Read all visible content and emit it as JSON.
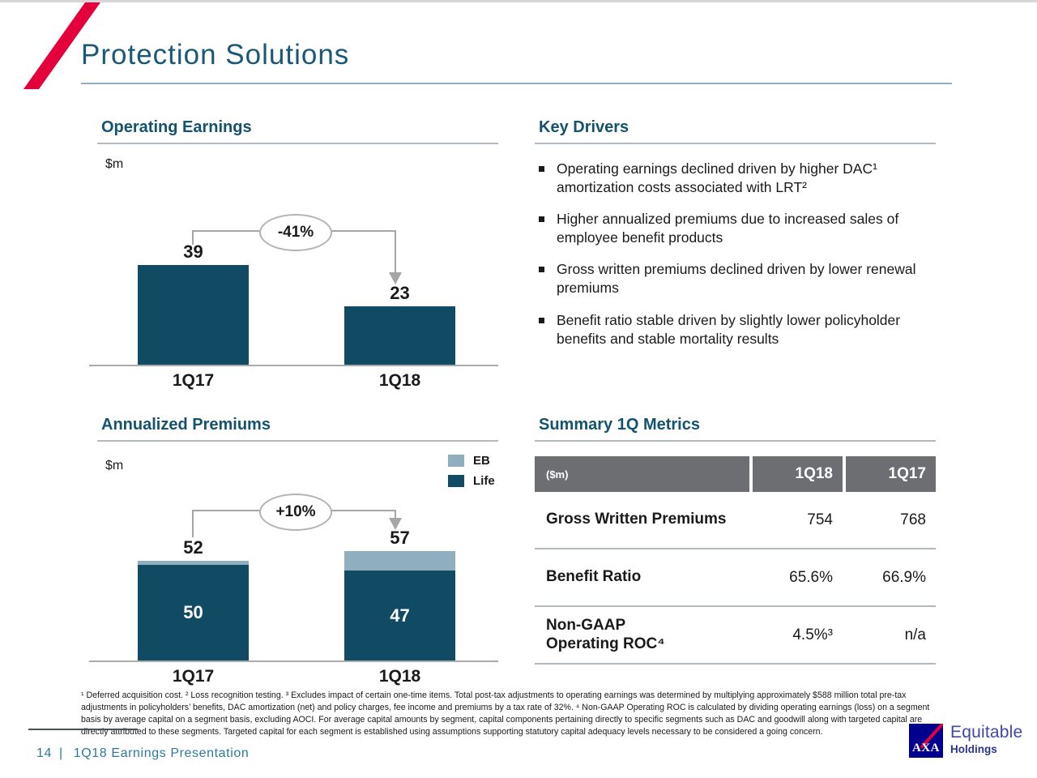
{
  "title": "Protection Solutions",
  "sections": {
    "operating_earnings": {
      "heading": "Operating Earnings",
      "unit_label": "$m"
    },
    "key_drivers": {
      "heading": "Key Drivers",
      "bullets": [
        "Operating earnings declined driven by higher DAC¹ amortization costs associated with LRT²",
        "Higher annualized premiums due to increased sales of employee benefit products",
        "Gross written premiums declined driven by lower renewal premiums",
        "Benefit ratio stable driven by slightly lower policyholder benefits and stable mortality results"
      ]
    },
    "annualized_premiums": {
      "heading": "Annualized Premiums",
      "unit_label": "$m"
    },
    "summary_metrics": {
      "heading": "Summary 1Q Metrics"
    }
  },
  "chart_data": [
    {
      "type": "bar",
      "title": "Operating Earnings",
      "unit": "$m",
      "categories": [
        "1Q17",
        "1Q18"
      ],
      "values": [
        39,
        23
      ],
      "change_label": "-41%",
      "bar_color": "#114A63",
      "ylim": [
        0,
        45
      ],
      "grid": false,
      "data_labels": true
    },
    {
      "type": "bar",
      "stacked": true,
      "title": "Annualized Premiums",
      "unit": "$m",
      "categories": [
        "1Q17",
        "1Q18"
      ],
      "series": [
        {
          "name": "Life",
          "values": [
            50,
            47
          ],
          "color": "#114A63"
        },
        {
          "name": "EB",
          "values": [
            2,
            10
          ],
          "color": "#8FAFC0"
        }
      ],
      "totals": [
        52,
        57
      ],
      "change_label": "+10%",
      "legend_position": "top-right",
      "ylim": [
        0,
        65
      ],
      "grid": false,
      "data_labels": true
    },
    {
      "type": "table",
      "title": "Summary 1Q Metrics",
      "header": [
        "($m)",
        "1Q18",
        "1Q17"
      ],
      "rows": [
        [
          "Gross Written Premiums",
          "754",
          "768"
        ],
        [
          "Benefit Ratio",
          "65.6%",
          "66.9%"
        ],
        [
          "Non-GAAP\nOperating ROC⁴",
          "4.5%³",
          "n/a"
        ]
      ]
    }
  ],
  "footnotes": "¹ Deferred acquisition cost. ² Loss recognition testing. ³ Excludes impact of certain one-time items. Total post-tax adjustments to operating earnings was determined by multiplying approximately $588 million total pre-tax adjustments in policyholders’ benefits, DAC amortization (net) and policy charges, fee income and premiums by a tax rate of 32%. ⁴ Non-GAAP Operating ROC is calculated by dividing operating earnings (loss) on a segment basis by average capital on a segment basis, excluding AOCI.  For average capital amounts by segment, capital components pertaining directly to specific segments such as DAC and goodwill along with targeted capital are directly attributed to these segments. Targeted capital for each segment is established using assumptions supporting statutory capital adequacy levels necessary to be considered a going concern.",
  "footer": {
    "page_number": "14",
    "divider": "|",
    "label": "1Q18 Earnings Presentation"
  },
  "logo": {
    "mark_text": "AXA",
    "name_line1": "Equitable",
    "name_line2": "Holdings"
  },
  "colors": {
    "accent_red": "#E4003A",
    "heading_teal": "#14536E",
    "bar_dark": "#114A63",
    "bar_light": "#8FAFC0",
    "table_header_gray": "#6D6E71",
    "footer_teal": "#2D7A99",
    "axa_blue": "#00008F",
    "connector_gray": "#A6A6A6"
  }
}
